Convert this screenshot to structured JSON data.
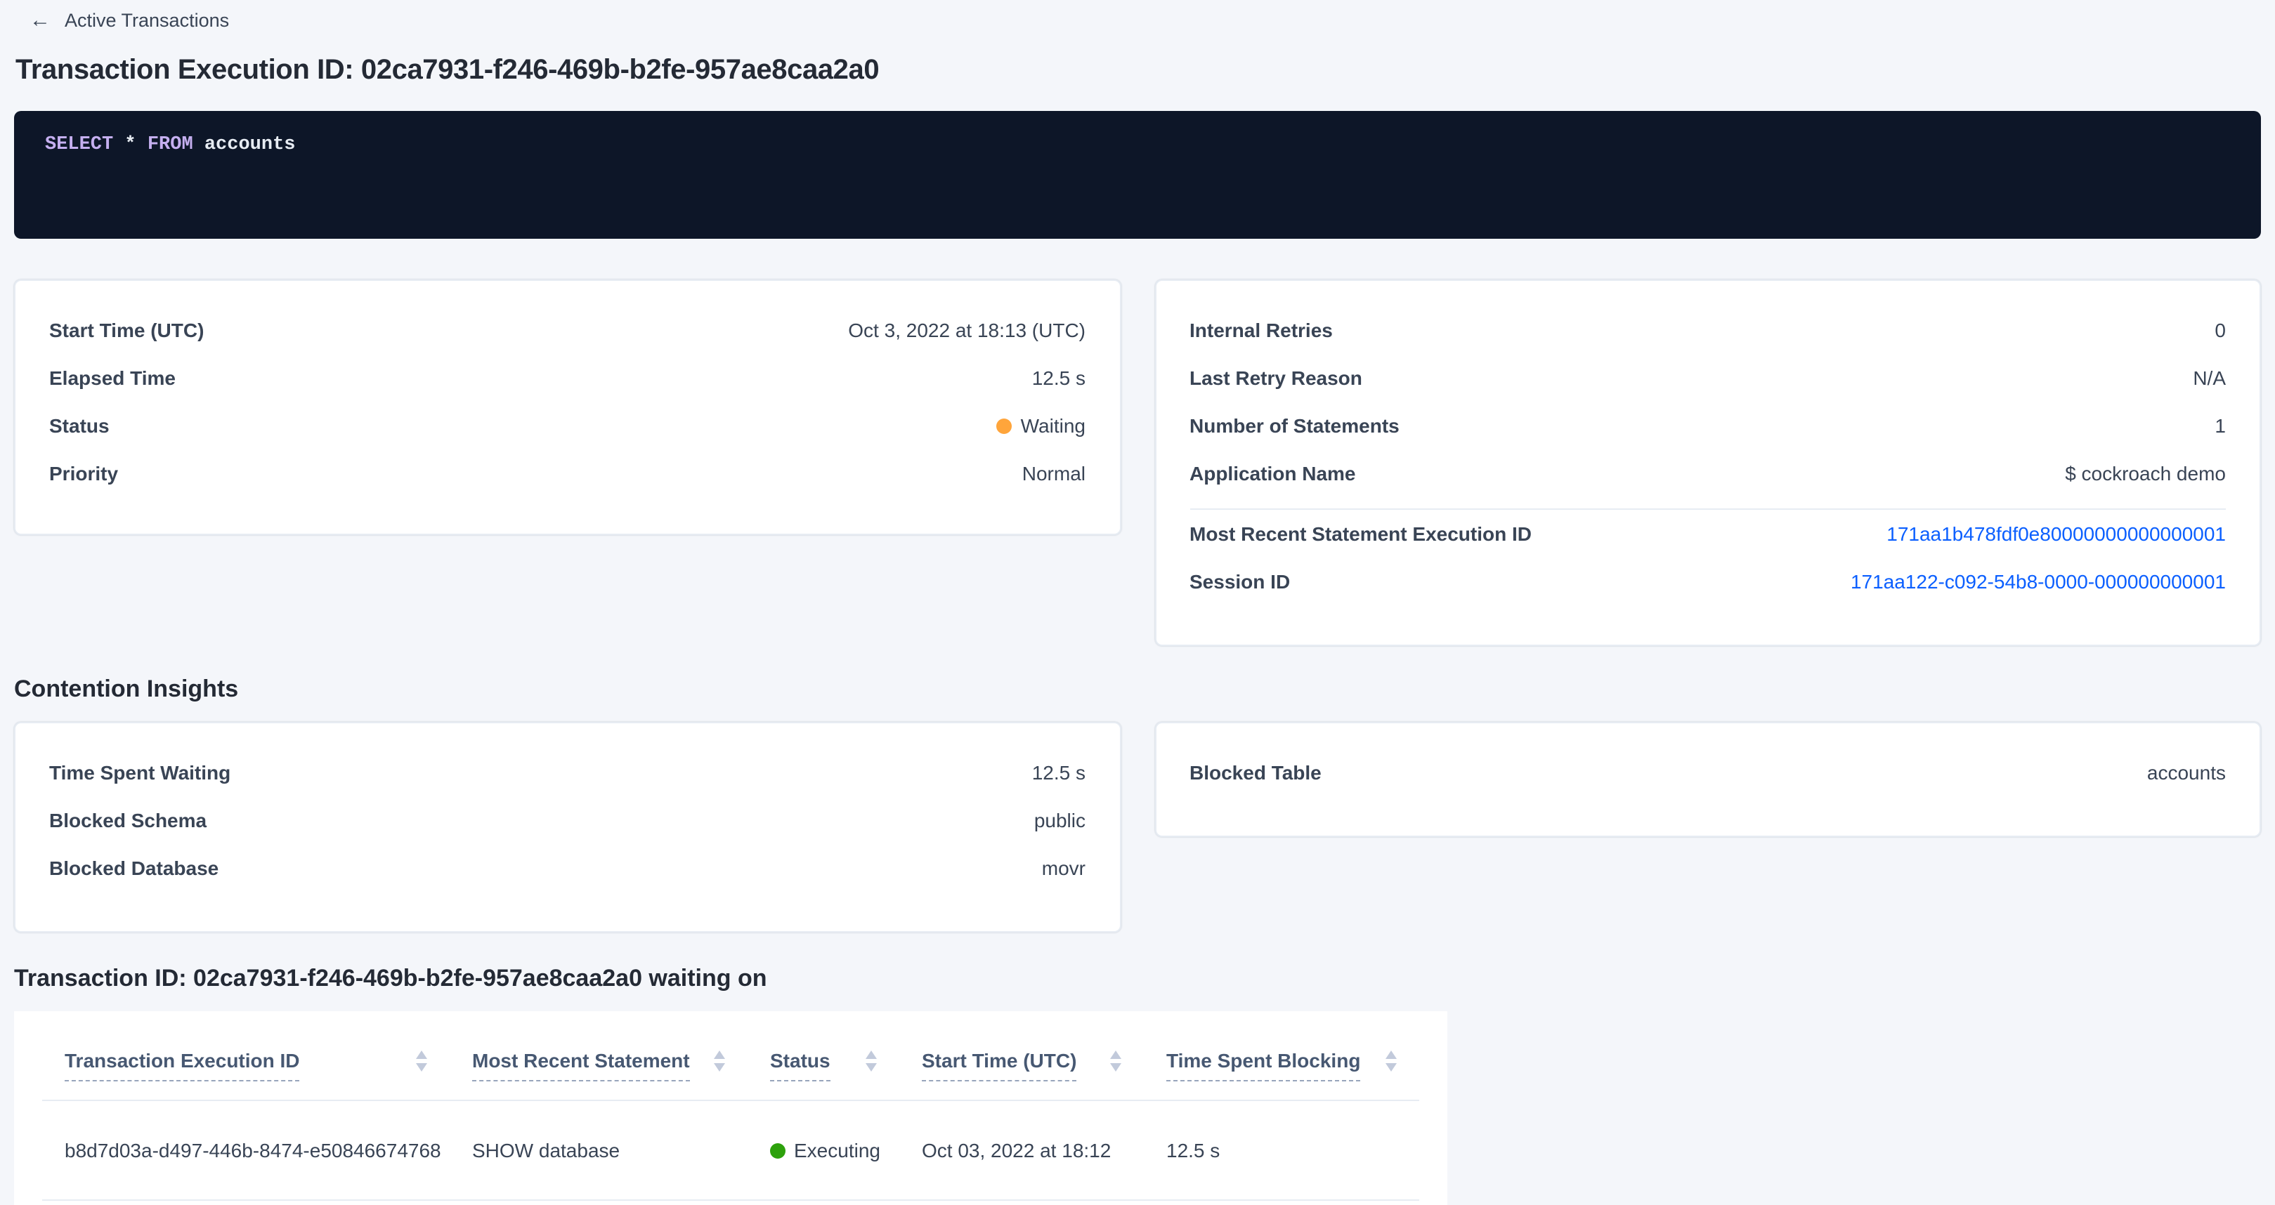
{
  "colors": {
    "link_blue": "#0b5fff",
    "status_waiting": "#ffa53b",
    "status_executing": "#2da10c"
  },
  "breadcrumb": {
    "label": "Active Transactions",
    "icon": "arrow-left"
  },
  "header": {
    "title": "Transaction Execution ID: 02ca7931-f246-469b-b2fe-957ae8caa2a0"
  },
  "sql_box": {
    "select_kw": "SELECT",
    "star_token": " * ",
    "from_kw": "FROM",
    "table_token": " accounts"
  },
  "summary_left": {
    "start_time": {
      "label": "Start Time (UTC)",
      "value": "Oct 3, 2022 at 18:13 (UTC)"
    },
    "elapsed_time": {
      "label": "Elapsed Time",
      "value": "12.5 s"
    },
    "status": {
      "label": "Status",
      "value": "Waiting"
    },
    "priority": {
      "label": "Priority",
      "value": "Normal"
    }
  },
  "summary_right": {
    "internal_retries": {
      "label": "Internal Retries",
      "value": "0"
    },
    "last_retry_reason": {
      "label": "Last Retry Reason",
      "value": "N/A"
    },
    "statement_count": {
      "label": "Number of Statements",
      "value": "1"
    },
    "application_name": {
      "label": "Application Name",
      "value": "$ cockroach demo"
    },
    "statement_execution_id": {
      "label": "Most Recent Statement Execution ID",
      "value": "171aa1b478fdf0e80000000000000001"
    },
    "session_id": {
      "label": "Session ID",
      "value": "171aa122-c092-54b8-0000-000000000001"
    }
  },
  "contention": {
    "heading": "Contention Insights",
    "time_spent_waiting": {
      "label": "Time Spent Waiting",
      "value": "12.5 s"
    },
    "blocked_schema": {
      "label": "Blocked Schema",
      "value": "public"
    },
    "blocked_database": {
      "label": "Blocked Database",
      "value": "movr"
    },
    "blocked_table": {
      "label": "Blocked Table",
      "value": "accounts"
    }
  },
  "waiting_on": {
    "heading": "Transaction ID: 02ca7931-f246-469b-b2fe-957ae8caa2a0 waiting on",
    "columns": [
      "Transaction Execution ID",
      "Most Recent Statement",
      "Status",
      "Start Time (UTC)",
      "Time Spent Blocking"
    ],
    "rows": [
      {
        "transaction_execution_id": "b8d7d03a-d497-446b-8474-e50846674768",
        "most_recent_statement": "SHOW database",
        "status": "Executing",
        "start_time": "Oct 03, 2022 at 18:12",
        "time_spent_blocking": "12.5 s"
      }
    ]
  }
}
